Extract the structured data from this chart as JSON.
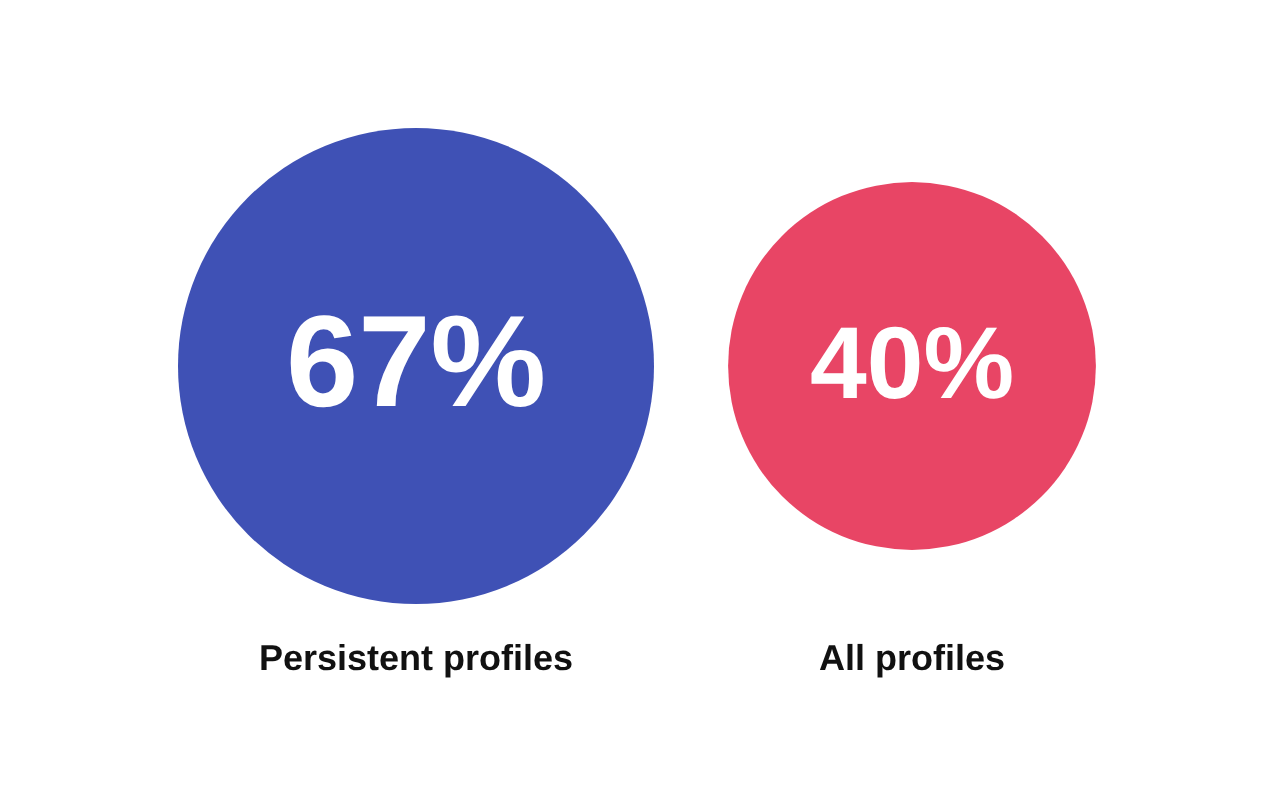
{
  "chart_data": {
    "type": "other",
    "categories": [
      "Persistent profiles",
      "All profiles"
    ],
    "values": [
      67,
      40
    ],
    "colors": [
      "#3f51b5",
      "#e84565"
    ],
    "value_labels": [
      "67%",
      "40%"
    ]
  }
}
